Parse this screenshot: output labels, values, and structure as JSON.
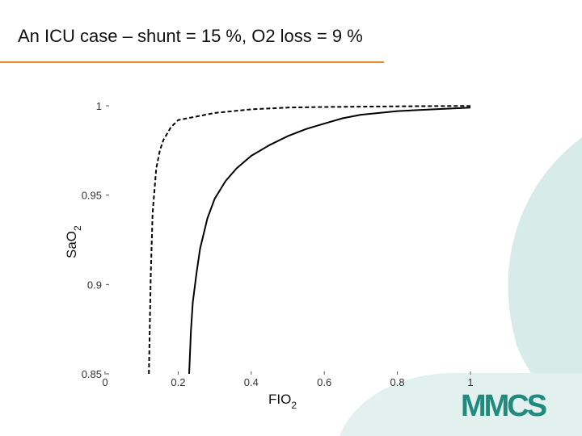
{
  "slide": {
    "title": "An ICU case – shunt = 15 %,  O2 loss = 9 %",
    "accent_color": "#e8892b",
    "deco_color": "#d7ece8",
    "logo_text": "MMCS",
    "logo_color": "#1f8a7d"
  },
  "chart_data": {
    "type": "line",
    "title": "",
    "xlabel": "FIO",
    "xlabel_sub": "2",
    "ylabel": "SaO",
    "ylabel_sub": "2",
    "xlim": [
      0,
      1
    ],
    "ylim": [
      0.85,
      1
    ],
    "xticks": [
      {
        "value": 0,
        "label": "0"
      },
      {
        "value": 0.2,
        "label": "0.2"
      },
      {
        "value": 0.4,
        "label": "0.4"
      },
      {
        "value": 0.6,
        "label": "0.6"
      },
      {
        "value": 0.8,
        "label": "0.8"
      },
      {
        "value": 1,
        "label": "1"
      }
    ],
    "yticks": [
      {
        "value": 0.85,
        "label": "0.85"
      },
      {
        "value": 0.9,
        "label": "0.9"
      },
      {
        "value": 0.95,
        "label": "0.95"
      },
      {
        "value": 1,
        "label": "1"
      }
    ],
    "grid": false,
    "series": [
      {
        "style": "dashed",
        "x": [
          0.12,
          0.125,
          0.13,
          0.14,
          0.15,
          0.16,
          0.18,
          0.2,
          0.25,
          0.3,
          0.4,
          0.5,
          0.6,
          0.7,
          0.8,
          0.9,
          1.0
        ],
        "y": [
          0.85,
          0.905,
          0.94,
          0.965,
          0.975,
          0.981,
          0.988,
          0.992,
          0.994,
          0.996,
          0.998,
          0.999,
          0.9993,
          0.9995,
          0.9997,
          0.9998,
          0.9999
        ]
      },
      {
        "style": "solid",
        "x": [
          0.23,
          0.235,
          0.24,
          0.25,
          0.26,
          0.28,
          0.3,
          0.33,
          0.36,
          0.4,
          0.45,
          0.5,
          0.55,
          0.6,
          0.65,
          0.7,
          0.8,
          0.9,
          1.0
        ],
        "y": [
          0.85,
          0.874,
          0.89,
          0.906,
          0.92,
          0.937,
          0.948,
          0.958,
          0.965,
          0.972,
          0.978,
          0.983,
          0.987,
          0.99,
          0.993,
          0.995,
          0.997,
          0.998,
          0.999
        ]
      }
    ]
  }
}
